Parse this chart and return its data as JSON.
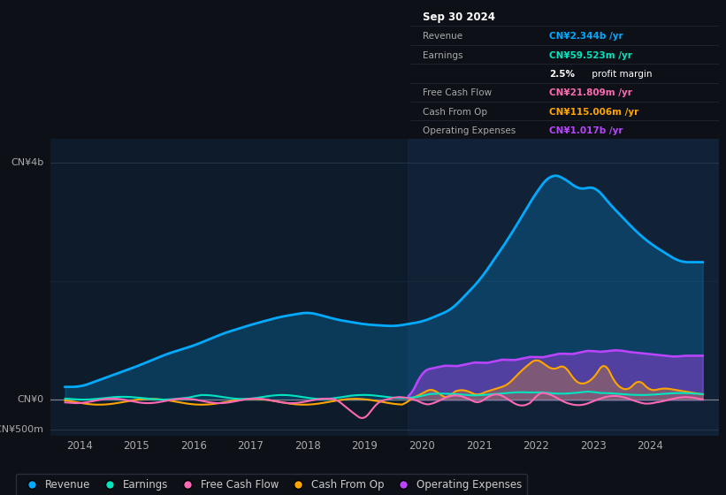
{
  "bg_color": "#0d1117",
  "plot_bg_color": "#0d1b2a",
  "ylim": [
    -600000000,
    4400000000
  ],
  "xlim_start": 2013.5,
  "xlim_end": 2025.2,
  "xticks": [
    2014,
    2015,
    2016,
    2017,
    2018,
    2019,
    2020,
    2021,
    2022,
    2023,
    2024
  ],
  "yticks": [
    -500000000,
    0,
    4000000000
  ],
  "ytick_labels": [
    "-CN¥500m",
    "CN¥0",
    "CN¥4b"
  ],
  "revenue_color": "#00aaff",
  "earnings_color": "#00e5c0",
  "fcf_color": "#ff69b4",
  "cashop_color": "#ffa500",
  "opex_color": "#bb44ff",
  "tooltip": {
    "date": "Sep 30 2024",
    "rows": [
      {
        "label": "Revenue",
        "value": "CN¥2.344b /yr",
        "color": "#00aaff"
      },
      {
        "label": "Earnings",
        "value": "CN¥59.523m /yr",
        "color": "#00e5c0"
      },
      {
        "label": "",
        "value": "2.5% profit margin",
        "color": "#ffffff"
      },
      {
        "label": "Free Cash Flow",
        "value": "CN¥21.809m /yr",
        "color": "#ff69b4"
      },
      {
        "label": "Cash From Op",
        "value": "CN¥115.006m /yr",
        "color": "#ffa500"
      },
      {
        "label": "Operating Expenses",
        "value": "CN¥1.017b /yr",
        "color": "#bb44ff"
      }
    ]
  },
  "legend_items": [
    {
      "label": "Revenue",
      "color": "#00aaff"
    },
    {
      "label": "Earnings",
      "color": "#00e5c0"
    },
    {
      "label": "Free Cash Flow",
      "color": "#ff69b4"
    },
    {
      "label": "Cash From Op",
      "color": "#ffa500"
    },
    {
      "label": "Operating Expenses",
      "color": "#bb44ff"
    }
  ]
}
